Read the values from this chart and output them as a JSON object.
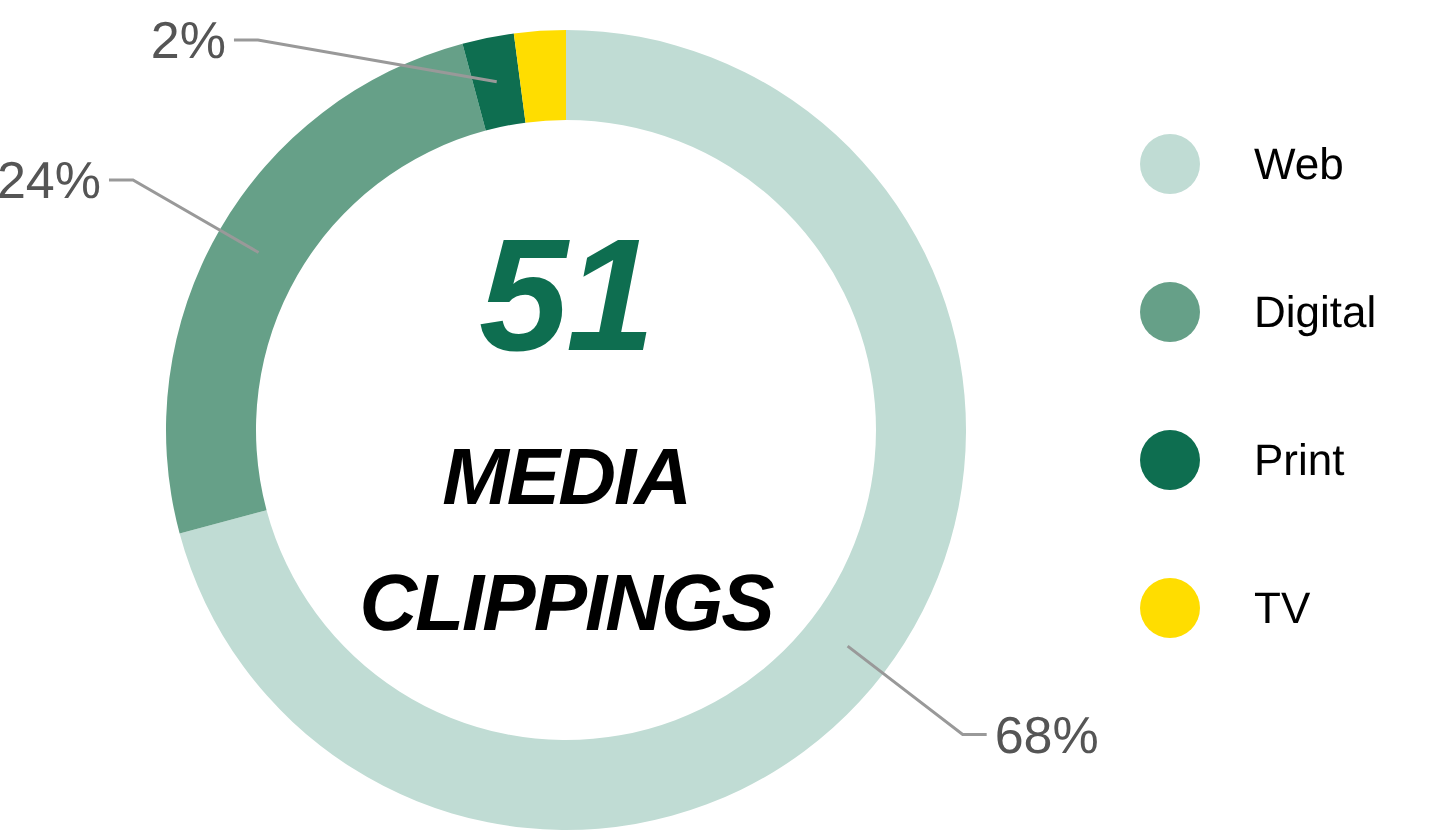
{
  "chart_data": {
    "type": "donut",
    "categories": [
      "Web",
      "Digital",
      "Print",
      "TV"
    ],
    "values": [
      68,
      24,
      2,
      2
    ],
    "colors": [
      "#c0dcd4",
      "#66a088",
      "#0e6e50",
      "#ffdd00"
    ],
    "value_labels": [
      "68%",
      "24%",
      "2%",
      null
    ],
    "annotations": [
      "51",
      "MEDIA",
      "CLIPPINGS"
    ],
    "legend": "right"
  }
}
